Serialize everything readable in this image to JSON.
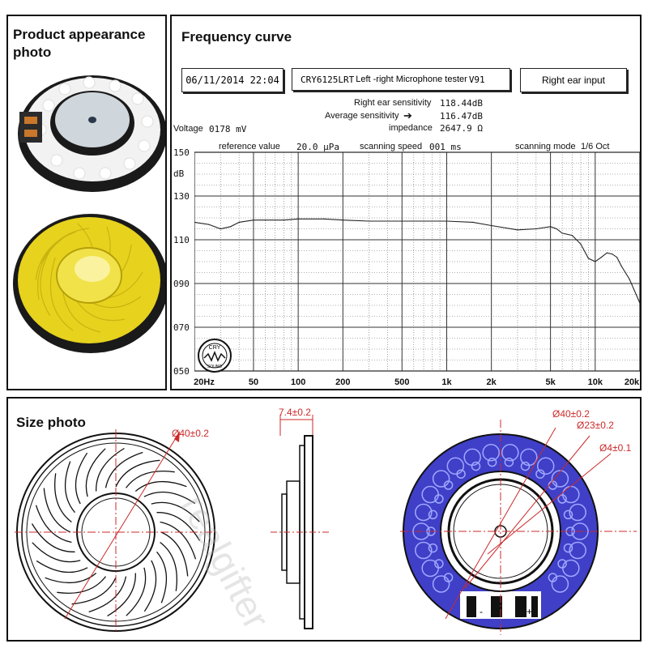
{
  "product_panel": {
    "heading_line1": "Product appearance",
    "heading_line2": "photo"
  },
  "frequency_panel": {
    "heading": "Frequency curve",
    "date_box": "06/11/2014 22:04",
    "model_box_code": "CRY6125LRT",
    "model_box_text": "Left -right Microphone tester",
    "model_box_suffix": "V91",
    "input_box": "Right ear input",
    "right_ear_sensitivity_label": "Right ear sensitivity",
    "right_ear_sensitivity_value": "118.44dB",
    "average_sensitivity_label": "Average sensitivity",
    "average_sensitivity_arrow": "➔",
    "average_sensitivity_value": "116.47dB",
    "impedance_label": "impedance",
    "impedance_value": "2647.9 Ω",
    "voltage_label": "Voltage",
    "voltage_value": "0178 mV",
    "reference_label": "reference value",
    "reference_value": "20.0 μPa",
    "scanning_speed_label": "scanning speed",
    "scanning_speed_value": "001 ms",
    "scanning_mode_label": "scanning mode",
    "scanning_mode_value": "1/6 Oct",
    "y_unit": "dB",
    "logo_text_top": "CRY",
    "logo_text_bottom": "SOUND"
  },
  "chart_data": {
    "type": "line",
    "x_scale": "log",
    "xlim": [
      20,
      20000
    ],
    "ylim": [
      50,
      150
    ],
    "y_ticks": [
      "150",
      "130",
      "110",
      "090",
      "070",
      "050"
    ],
    "x_ticks": [
      "20Hz",
      "50",
      "100",
      "200",
      "500",
      "1k",
      "2k",
      "5k",
      "10k",
      "20k"
    ],
    "grid": true,
    "series": [
      {
        "x": [
          20,
          25,
          30,
          35,
          40,
          50,
          60,
          80,
          100,
          150,
          200,
          300,
          500,
          700,
          1000,
          1500,
          2000,
          3000,
          4000,
          5000,
          5500,
          6000,
          7000,
          8000,
          9000,
          10000,
          11000,
          12000,
          13000,
          14000,
          15000,
          17000,
          20000
        ],
        "y": [
          118,
          117,
          115,
          116,
          118,
          119,
          119,
          119,
          119.5,
          119.5,
          119,
          118.5,
          118.5,
          118.5,
          118.5,
          118,
          116.5,
          114.5,
          115,
          116,
          115,
          113,
          112,
          108,
          101.5,
          100,
          102,
          104,
          103.5,
          102,
          98,
          92,
          81
        ]
      }
    ]
  },
  "size_panel": {
    "heading": "Size photo",
    "dim_left_diameter": "Ø40±0.2",
    "dim_side_thickness": "7.4±0.2",
    "dim_right_outer": "Ø40±0.2",
    "dim_right_middle": "Ø23±0.2",
    "dim_right_inner": "Ø4±0.1",
    "terminal_minus": "-",
    "terminal_plus": "+",
    "watermark": "realgifter"
  },
  "colors": {
    "dimension_red": "#cc2a2a",
    "foam_blue": "#3f3fc8",
    "diaphragm_gold": "#e7d21e",
    "curve_grid": "#555555"
  }
}
